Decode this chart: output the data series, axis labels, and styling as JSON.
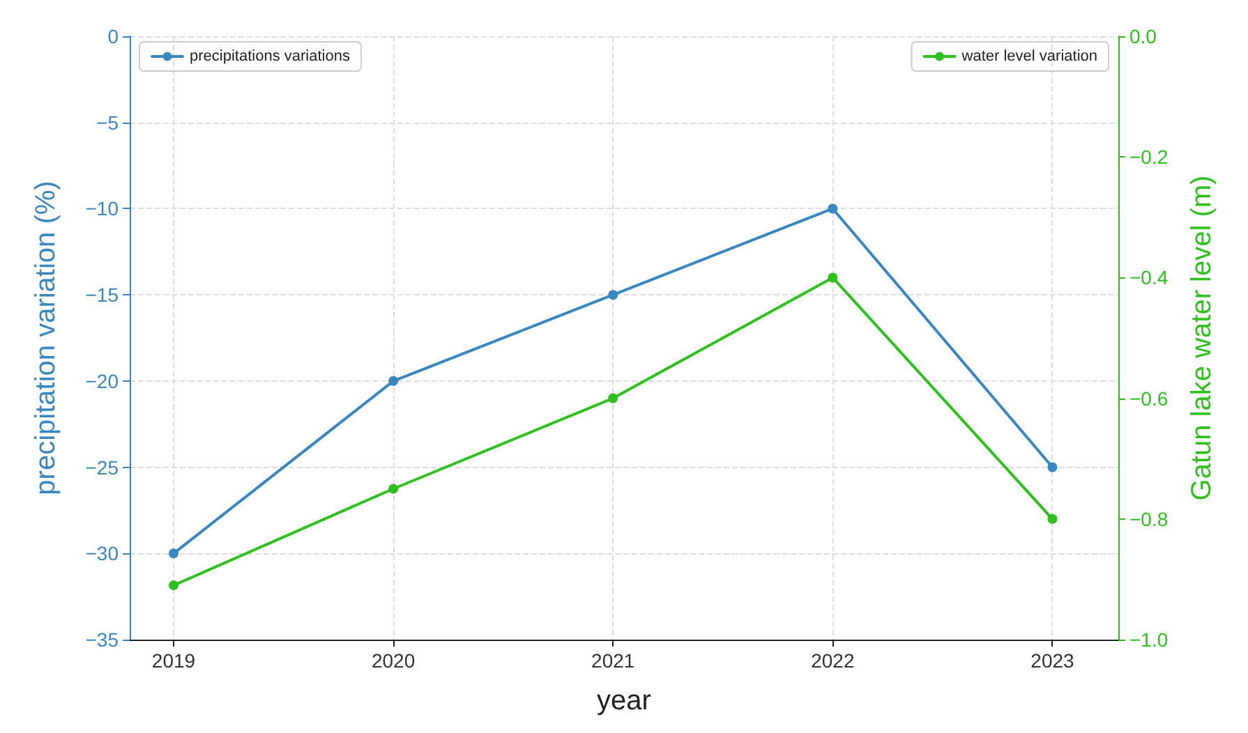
{
  "chart_data": {
    "type": "line",
    "xlabel": "year",
    "ylabel": "precipitation variation (%)",
    "y2label": "Gatun lake water level (m)",
    "x": [
      2019,
      2020,
      2021,
      2022,
      2023
    ],
    "xlim": [
      2018.8,
      2023.3
    ],
    "xticks": [
      2019,
      2020,
      2021,
      2022,
      2023
    ],
    "ylim": [
      -35,
      0
    ],
    "yticks": [
      -35,
      -30,
      -25,
      -20,
      -15,
      -10,
      -5,
      0
    ],
    "y2lim": [
      -1.0,
      0.0
    ],
    "y2ticks": [
      {
        "value": -1.0,
        "label": "−1.0"
      },
      {
        "value": -0.8,
        "label": "−0.8"
      },
      {
        "value": -0.6,
        "label": "−0.6"
      },
      {
        "value": -0.4,
        "label": "−0.4"
      },
      {
        "value": -0.2,
        "label": "−0.2"
      },
      {
        "value": 0,
        "label": "0.0"
      }
    ],
    "series": [
      {
        "name": "precipitations variations",
        "color": "#3a87bf",
        "values": [
          -30,
          -20,
          -15,
          -10,
          -25
        ]
      },
      {
        "name": "water level variation",
        "color": "#2fbf1f",
        "axis": "y2",
        "values": [
          -0.91,
          -0.75,
          -0.6,
          -0.4,
          -0.8
        ]
      }
    ],
    "grid": true,
    "legend": "top",
    "marker": "circle",
    "line_style": "solid"
  }
}
